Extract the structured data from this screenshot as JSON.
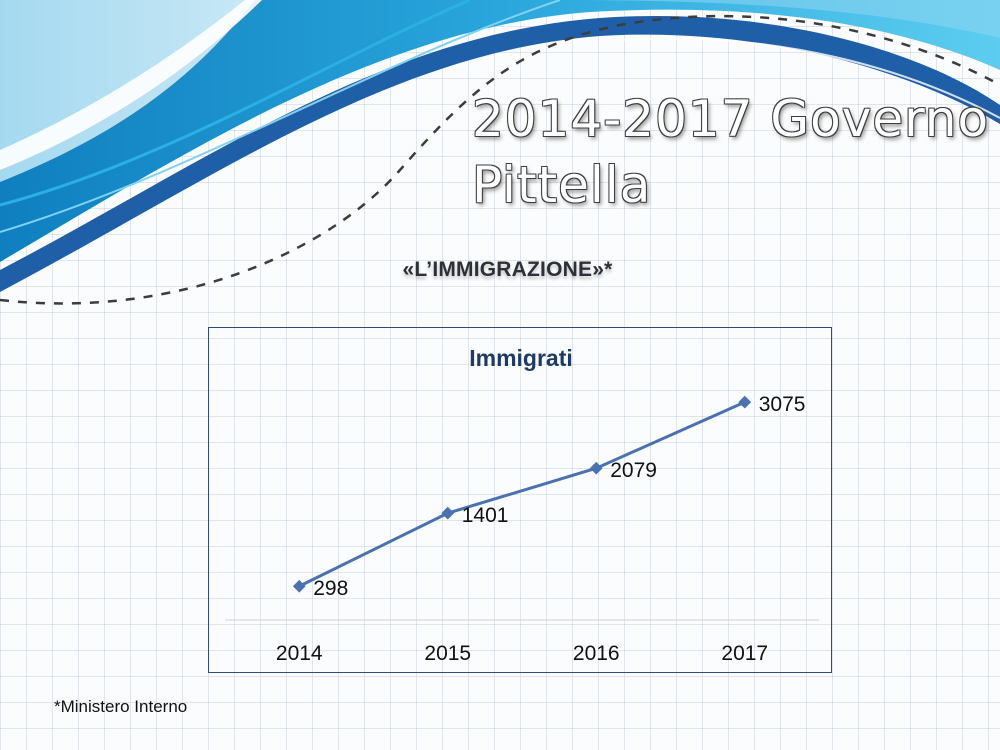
{
  "slide": {
    "title_line1": "2014-2017 Governo",
    "title_line2": "Pittella",
    "subtitle": "«L’IMMIGRAZIONE»*",
    "footnote": "*Ministero Interno"
  },
  "colors": {
    "series_line": "#4a72b0",
    "chart_border": "#2f4a7a",
    "chart_title": "#1f3b63",
    "wave_dark": "#1f5fa8",
    "wave_light": "#39b6e0"
  },
  "chart_data": {
    "type": "line",
    "title": "Immigrati",
    "categories": [
      "2014",
      "2015",
      "2016",
      "2017"
    ],
    "series": [
      {
        "values": [
          298,
          1401,
          2079,
          3075
        ]
      }
    ],
    "data_labels": [
      "298",
      "1401",
      "2079",
      "3075"
    ],
    "ylim": [
      0,
      3500
    ],
    "xlabel": "",
    "ylabel": "",
    "grid": false,
    "legend": "none",
    "marker": "diamond"
  }
}
